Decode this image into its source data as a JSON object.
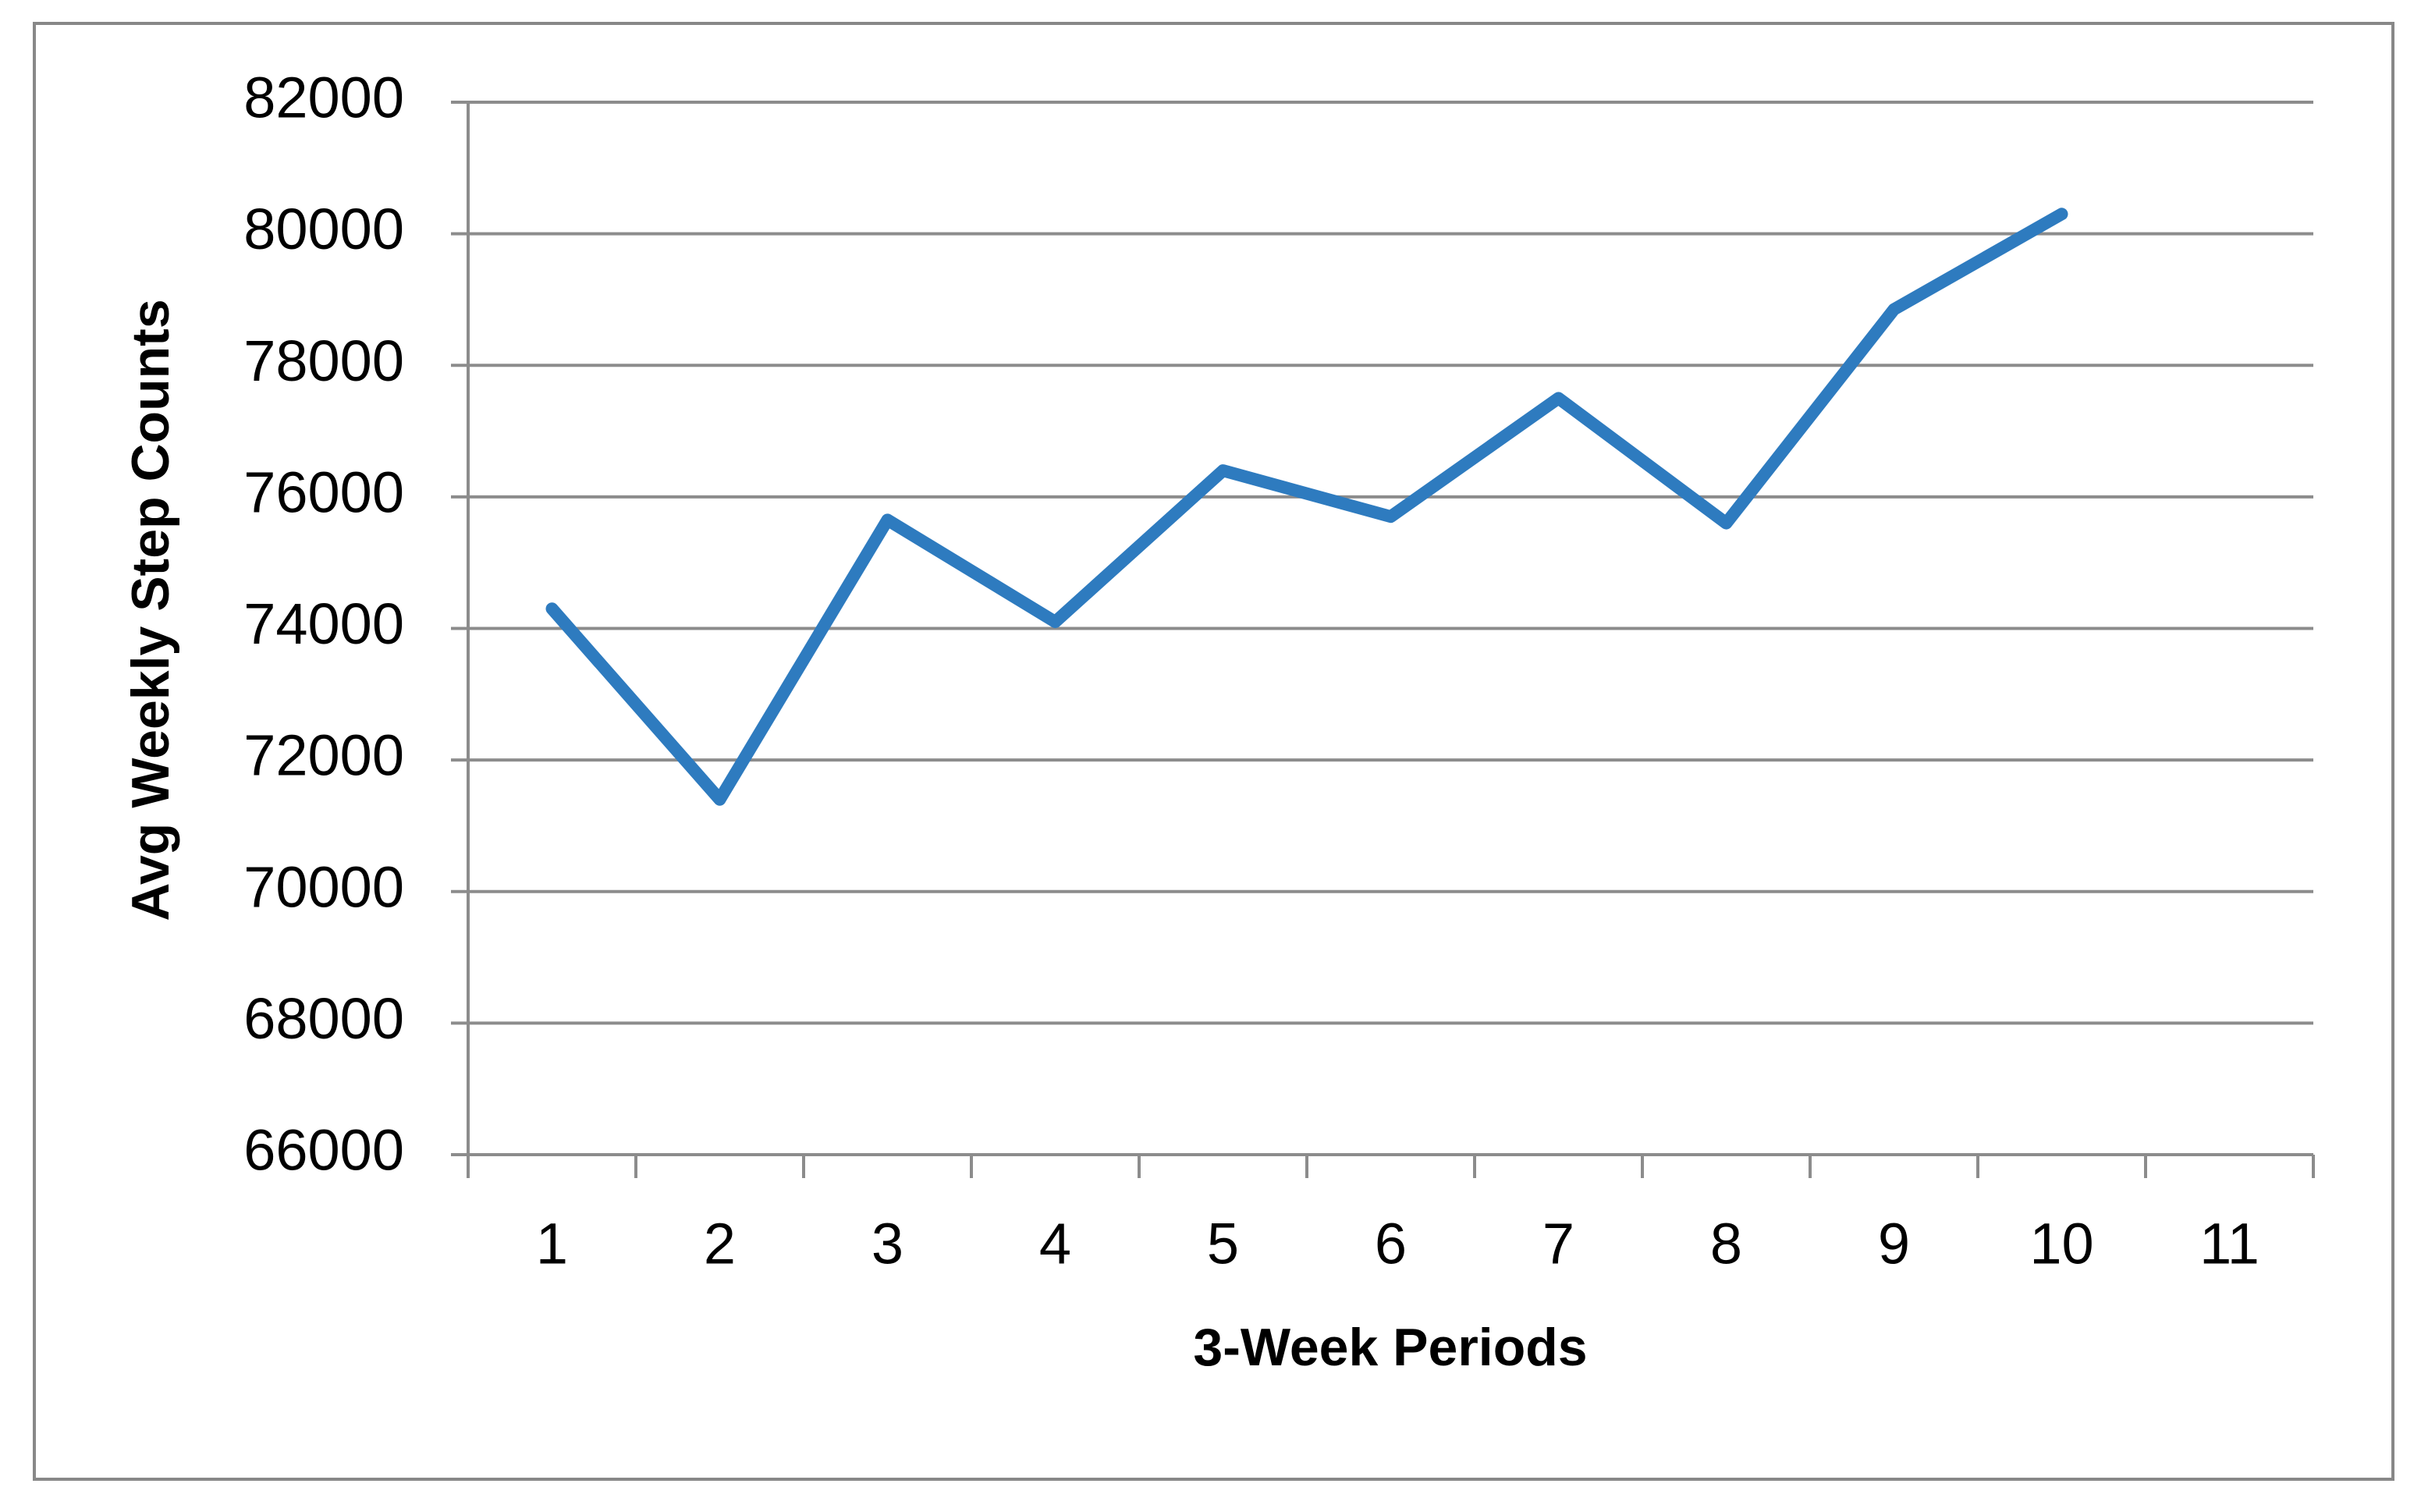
{
  "chart_data": {
    "type": "line",
    "x_label": "3-Week Periods",
    "y_label": "Avg Weekly Step Counts",
    "categories": [
      "1",
      "2",
      "3",
      "4",
      "5",
      "6",
      "7",
      "8",
      "9",
      "10",
      "11"
    ],
    "values": [
      74300,
      71400,
      75650,
      74100,
      76400,
      75700,
      77500,
      75600,
      78850,
      80300,
      null
    ],
    "color": "#2e7bbf",
    "ylim": [
      66000,
      82000
    ],
    "yticks": [
      66000,
      68000,
      70000,
      72000,
      74000,
      76000,
      78000,
      80000,
      82000
    ],
    "grid": true
  }
}
